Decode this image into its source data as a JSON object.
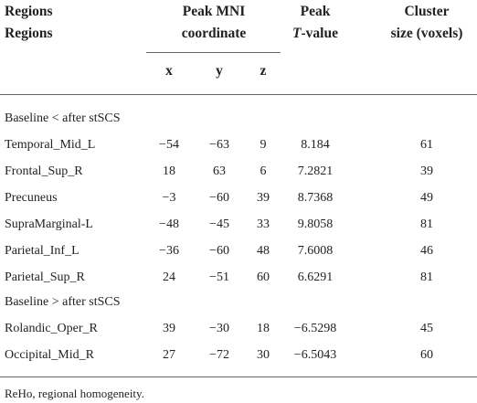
{
  "header": {
    "regions": [
      "Regions",
      "Regions"
    ],
    "peak_mni": [
      "Peak MNI",
      "coordinate"
    ],
    "peak_t": {
      "line1": "Peak",
      "italic": "T",
      "rest": "-value"
    },
    "cluster": [
      "Cluster",
      "size (voxels)"
    ],
    "coords": [
      "x",
      "y",
      "z"
    ]
  },
  "sections": [
    {
      "title": "Baseline < after stSCS",
      "rows": [
        [
          "Temporal_Mid_L",
          "−54",
          "−63",
          "9",
          "8.184",
          "61"
        ],
        [
          "Frontal_Sup_R",
          "18",
          "63",
          "6",
          "7.2821",
          "39"
        ],
        [
          "Precuneus",
          "−3",
          "−60",
          "39",
          "8.7368",
          "49"
        ],
        [
          "SupraMarginal-L",
          "−48",
          "−45",
          "33",
          "9.8058",
          "81"
        ],
        [
          "Parietal_Inf_L",
          "−36",
          "−60",
          "48",
          "7.6008",
          "46"
        ],
        [
          "Parietal_Sup_R",
          "24",
          "−51",
          "60",
          "6.6291",
          "81"
        ]
      ]
    },
    {
      "title": "Baseline > after stSCS",
      "rows": [
        [
          "Rolandic_Oper_R",
          "39",
          "−30",
          "18",
          "−6.5298",
          "45"
        ],
        [
          "Occipital_Mid_R",
          "27",
          "−72",
          "30",
          "−6.5043",
          "60"
        ]
      ]
    }
  ],
  "footnote": "ReHo, regional homogeneity."
}
